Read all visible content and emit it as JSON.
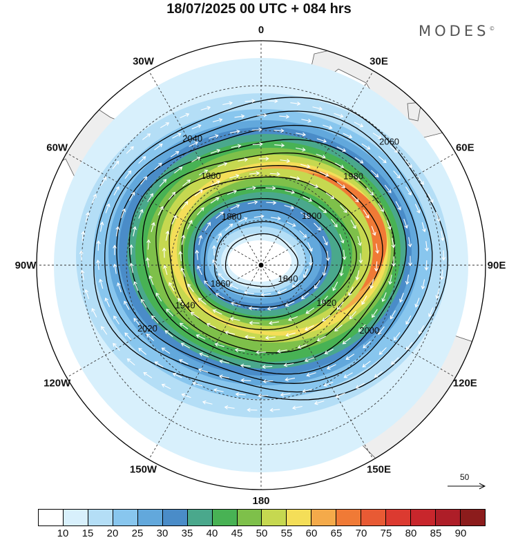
{
  "title": "18/07/2025  00 UTC  + 084 hrs",
  "brand": {
    "name": "MODES",
    "mark": "©"
  },
  "longitude_labels": [
    {
      "lon": 0,
      "text": "0"
    },
    {
      "lon": 30,
      "text": "30E"
    },
    {
      "lon": 60,
      "text": "60E"
    },
    {
      "lon": 90,
      "text": "90E"
    },
    {
      "lon": 120,
      "text": "120E"
    },
    {
      "lon": 150,
      "text": "150E"
    },
    {
      "lon": 180,
      "text": "180"
    },
    {
      "lon": 210,
      "text": "150W"
    },
    {
      "lon": 240,
      "text": "120W"
    },
    {
      "lon": 270,
      "text": "90W"
    },
    {
      "lon": 300,
      "text": "60W"
    },
    {
      "lon": 330,
      "text": "30W"
    }
  ],
  "contour_labels": [
    "1840",
    "1860",
    "1880",
    "1900",
    "1920",
    "1940",
    "1960",
    "1980",
    "2000",
    "2020",
    "2040",
    "2060"
  ],
  "reference_vector": {
    "value": "50"
  },
  "colorbar": {
    "ticks": [
      "10",
      "15",
      "20",
      "25",
      "30",
      "35",
      "40",
      "45",
      "50",
      "55",
      "60",
      "65",
      "70",
      "75",
      "80",
      "85",
      "90"
    ],
    "colors": [
      "#ffffff",
      "#d8f0fc",
      "#b4def6",
      "#88c6ee",
      "#62a8dc",
      "#4a8cc8",
      "#4aa88c",
      "#48b254",
      "#7ec04a",
      "#c6d850",
      "#f4de58",
      "#f4aa4a",
      "#f07a36",
      "#e85a34",
      "#dc3a30",
      "#c8262c",
      "#ae1e28",
      "#8c1c1c"
    ]
  },
  "colors": {
    "land": "#eeeeee",
    "coast": "#555555",
    "contour": "#000000",
    "wind_arrow": "#ffffff"
  }
}
